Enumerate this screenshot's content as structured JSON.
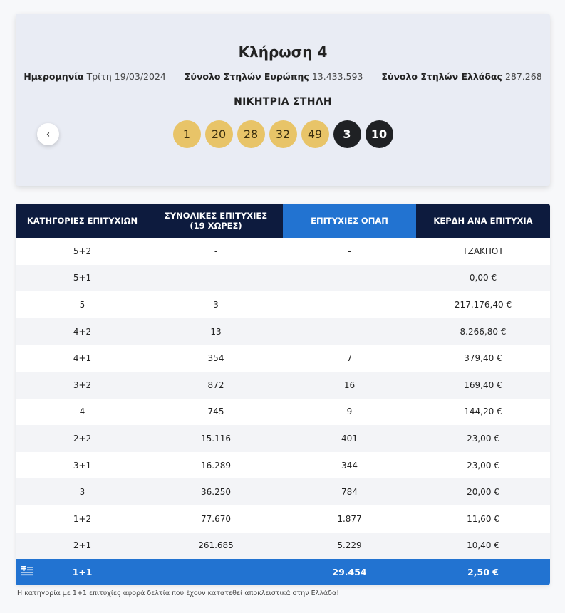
{
  "draw": {
    "title": "Κλήρωση 4",
    "date_label": "Ημερομηνία",
    "date_value": "Τρίτη 19/03/2024",
    "europe_label": "Σύνολο Στηλών Ευρώπης",
    "europe_value": "13.433.593",
    "greece_label": "Σύνολο Στηλών Ελλάδας",
    "greece_value": "287.268",
    "winning_title": "ΝΙΚΗΤΡΙΑ ΣΤΗΛΗ",
    "numbers": [
      "1",
      "20",
      "28",
      "32",
      "49"
    ],
    "stars": [
      "3",
      "10"
    ],
    "prev_icon": "‹"
  },
  "table": {
    "headers": {
      "category": "ΚΑΤΗΓΟΡΙΕΣ ΕΠΙΤΥΧΙΩΝ",
      "total_line1": "ΣΥΝΟΛΙΚΕΣ ΕΠΙΤΥΧΙΕΣ",
      "total_line2": "(19 ΧΩΡΕΣ)",
      "opap": "ΕΠΙΤΥΧΙΕΣ ΟΠΑΠ",
      "prize": "ΚΕΡΔΗ ΑΝΑ ΕΠΙΤΥΧΙΑ"
    },
    "rows": [
      {
        "cat": "5+2",
        "total": "-",
        "opap": "-",
        "prize": "ΤΖΑΚΠΟΤ"
      },
      {
        "cat": "5+1",
        "total": "-",
        "opap": "-",
        "prize": "0,00 €"
      },
      {
        "cat": "5",
        "total": "3",
        "opap": "-",
        "prize": "217.176,40 €"
      },
      {
        "cat": "4+2",
        "total": "13",
        "opap": "-",
        "prize": "8.266,80 €"
      },
      {
        "cat": "4+1",
        "total": "354",
        "opap": "7",
        "prize": "379,40 €"
      },
      {
        "cat": "3+2",
        "total": "872",
        "opap": "16",
        "prize": "169,40 €"
      },
      {
        "cat": "4",
        "total": "745",
        "opap": "9",
        "prize": "144,20 €"
      },
      {
        "cat": "2+2",
        "total": "15.116",
        "opap": "401",
        "prize": "23,00 €"
      },
      {
        "cat": "3+1",
        "total": "16.289",
        "opap": "344",
        "prize": "23,00 €"
      },
      {
        "cat": "3",
        "total": "36.250",
        "opap": "784",
        "prize": "20,00 €"
      },
      {
        "cat": "1+2",
        "total": "77.670",
        "opap": "1.877",
        "prize": "11,60 €"
      },
      {
        "cat": "2+1",
        "total": "261.685",
        "opap": "5.229",
        "prize": "10,40 €"
      }
    ],
    "footer": {
      "cat": "1+1",
      "total": "",
      "opap": "29.454",
      "prize": "2,50 €"
    },
    "footer_icon": "greek-flag-icon"
  },
  "footnote": "Η κατηγορία με 1+1 επιτυχίες αφορά δελτία που έχουν κατατεθεί αποκλειστικά στην Ελλάδα!"
}
